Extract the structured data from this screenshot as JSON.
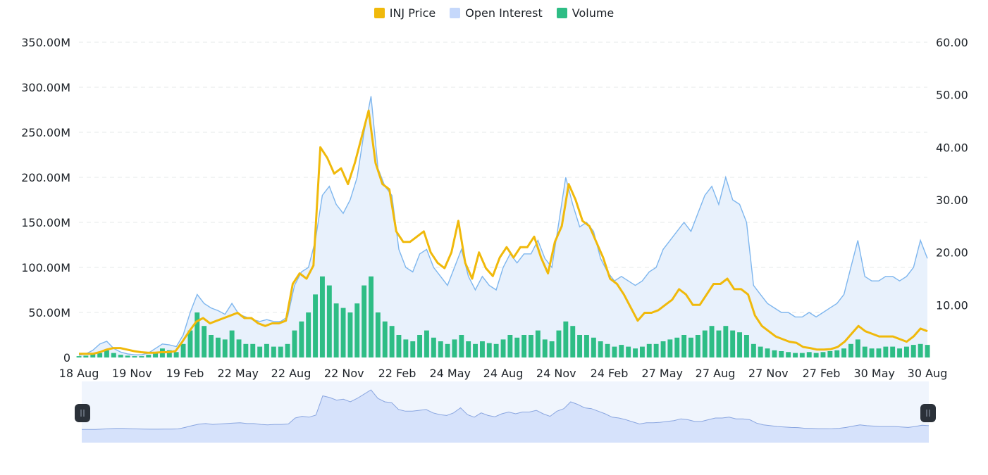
{
  "legend": {
    "items": [
      {
        "label": "INJ Price",
        "color": "#f0b90b"
      },
      {
        "label": "Open Interest",
        "color": "#c5d8fb"
      },
      {
        "label": "Volume",
        "color": "#2ebd85"
      }
    ]
  },
  "chart_data": {
    "type": "line",
    "grid": true,
    "legend_position": "top-center",
    "x_ticks": [
      "18 Aug",
      "19 Nov",
      "19 Feb",
      "22 May",
      "22 Aug",
      "22 Nov",
      "22 Feb",
      "24 May",
      "24 Aug",
      "24 Nov",
      "24 Feb",
      "27 May",
      "27 Aug",
      "27 Nov",
      "27 Feb",
      "30 May",
      "30 Aug"
    ],
    "y_left": {
      "ticks": [
        "0",
        "50.00M",
        "100.00M",
        "150.00M",
        "200.00M",
        "250.00M",
        "300.00M",
        "350.00M"
      ],
      "range": [
        0,
        350000000
      ]
    },
    "y_right": {
      "ticks": [
        "10.00",
        "20.00",
        "30.00",
        "40.00",
        "50.00",
        "60.00"
      ],
      "range": [
        0,
        60
      ]
    },
    "series": [
      {
        "name": "INJ Price",
        "axis": "right",
        "color": "#f0b90b",
        "values": [
          0.7,
          0.7,
          0.7,
          1.0,
          1.5,
          1.8,
          1.8,
          1.5,
          1.2,
          1.0,
          0.9,
          0.9,
          1.0,
          1.0,
          1.2,
          3.0,
          5.0,
          6.8,
          7.5,
          6.5,
          7.0,
          7.5,
          8.0,
          8.5,
          7.5,
          7.5,
          6.5,
          6.0,
          6.5,
          6.5,
          7.0,
          14.0,
          16.0,
          15.0,
          17.5,
          40.0,
          38.0,
          35.0,
          36.0,
          33.0,
          37.0,
          42.0,
          47.0,
          37.0,
          33.0,
          32.0,
          24.0,
          22.0,
          22.0,
          23.0,
          24.0,
          20.0,
          18.0,
          17.0,
          20.0,
          26.0,
          18.0,
          15.0,
          20.0,
          17.0,
          15.5,
          19.0,
          21.0,
          19.0,
          21.0,
          21.0,
          23.0,
          19.0,
          16.0,
          22.0,
          25.0,
          33.0,
          30.0,
          26.0,
          25.0,
          22.0,
          19.0,
          15.0,
          14.0,
          12.0,
          9.5,
          7.0,
          8.5,
          8.5,
          9.0,
          10.0,
          11.0,
          13.0,
          12.0,
          10.0,
          10.0,
          12.0,
          14.0,
          14.0,
          15.0,
          13.0,
          13.0,
          12.0,
          8.0,
          6.0,
          5.0,
          4.0,
          3.5,
          3.0,
          2.8,
          2.0,
          1.8,
          1.5,
          1.5,
          1.6,
          2.0,
          3.0,
          4.5,
          6.0,
          5.0,
          4.5,
          4.0,
          4.0,
          4.0,
          3.5,
          3.0,
          4.0,
          5.5,
          5.0
        ]
      },
      {
        "name": "Open Interest",
        "axis": "left",
        "color": "#7eb6ee",
        "fill": "#e8f1fc",
        "values": [
          2500000,
          4000000,
          8000000,
          15000000,
          18000000,
          10000000,
          6000000,
          4000000,
          3000000,
          3000000,
          5000000,
          10000000,
          15000000,
          14000000,
          12000000,
          25000000,
          50000000,
          70000000,
          60000000,
          55000000,
          52000000,
          48000000,
          60000000,
          48000000,
          45000000,
          42000000,
          40000000,
          42000000,
          40000000,
          40000000,
          45000000,
          80000000,
          95000000,
          100000000,
          130000000,
          180000000,
          190000000,
          170000000,
          160000000,
          175000000,
          200000000,
          250000000,
          290000000,
          210000000,
          190000000,
          180000000,
          120000000,
          100000000,
          95000000,
          115000000,
          120000000,
          100000000,
          90000000,
          80000000,
          100000000,
          120000000,
          90000000,
          75000000,
          90000000,
          80000000,
          75000000,
          100000000,
          115000000,
          105000000,
          115000000,
          115000000,
          130000000,
          110000000,
          100000000,
          150000000,
          200000000,
          170000000,
          145000000,
          150000000,
          140000000,
          110000000,
          95000000,
          85000000,
          90000000,
          85000000,
          80000000,
          85000000,
          95000000,
          100000000,
          120000000,
          130000000,
          140000000,
          150000000,
          140000000,
          160000000,
          180000000,
          190000000,
          170000000,
          200000000,
          175000000,
          170000000,
          150000000,
          80000000,
          70000000,
          60000000,
          55000000,
          50000000,
          50000000,
          45000000,
          45000000,
          50000000,
          45000000,
          50000000,
          55000000,
          60000000,
          70000000,
          100000000,
          130000000,
          90000000,
          85000000,
          85000000,
          90000000,
          90000000,
          85000000,
          90000000,
          100000000,
          130000000,
          110000000
        ]
      },
      {
        "name": "Volume",
        "axis": "left",
        "color": "#2ebd85",
        "values": [
          1500000,
          2000000,
          4000000,
          5000000,
          8000000,
          5000000,
          3000000,
          2000000,
          1500000,
          1500000,
          3000000,
          5000000,
          10000000,
          8000000,
          6000000,
          15000000,
          30000000,
          50000000,
          35000000,
          25000000,
          22000000,
          20000000,
          30000000,
          20000000,
          15000000,
          15000000,
          12000000,
          15000000,
          12000000,
          12000000,
          15000000,
          30000000,
          40000000,
          50000000,
          70000000,
          90000000,
          80000000,
          60000000,
          55000000,
          50000000,
          60000000,
          80000000,
          90000000,
          50000000,
          40000000,
          35000000,
          25000000,
          20000000,
          18000000,
          25000000,
          30000000,
          22000000,
          18000000,
          15000000,
          20000000,
          25000000,
          18000000,
          15000000,
          18000000,
          16000000,
          15000000,
          20000000,
          25000000,
          22000000,
          25000000,
          25000000,
          30000000,
          20000000,
          18000000,
          30000000,
          40000000,
          35000000,
          25000000,
          25000000,
          22000000,
          18000000,
          15000000,
          12000000,
          14000000,
          12000000,
          10000000,
          12000000,
          15000000,
          15000000,
          18000000,
          20000000,
          22000000,
          25000000,
          22000000,
          25000000,
          30000000,
          35000000,
          30000000,
          35000000,
          30000000,
          28000000,
          25000000,
          15000000,
          12000000,
          10000000,
          8000000,
          7000000,
          6000000,
          5000000,
          5000000,
          6000000,
          5000000,
          6000000,
          7000000,
          8000000,
          10000000,
          15000000,
          20000000,
          12000000,
          10000000,
          10000000,
          12000000,
          12000000,
          10000000,
          12000000,
          14000000,
          15000000,
          14000000
        ]
      }
    ]
  },
  "navigator": {
    "fill": "#d6e2fb",
    "values": [
      0.7,
      0.7,
      0.7,
      1.0,
      1.5,
      1.8,
      1.8,
      1.5,
      1.2,
      1.0,
      0.9,
      0.9,
      1.0,
      1.0,
      1.2,
      3.0,
      5.0,
      6.8,
      7.5,
      6.5,
      7.0,
      7.5,
      8.0,
      8.5,
      7.5,
      7.5,
      6.5,
      6.0,
      6.5,
      6.5,
      7.0,
      14.0,
      16.0,
      15.0,
      17.5,
      40.0,
      38.0,
      35.0,
      36.0,
      33.0,
      37.0,
      42.0,
      47.0,
      37.0,
      33.0,
      32.0,
      24.0,
      22.0,
      22.0,
      23.0,
      24.0,
      20.0,
      18.0,
      17.0,
      20.0,
      26.0,
      18.0,
      15.0,
      20.0,
      17.0,
      15.5,
      19.0,
      21.0,
      19.0,
      21.0,
      21.0,
      23.0,
      19.0,
      16.0,
      22.0,
      25.0,
      33.0,
      30.0,
      26.0,
      25.0,
      22.0,
      19.0,
      15.0,
      14.0,
      12.0,
      9.5,
      7.0,
      8.5,
      8.5,
      9.0,
      10.0,
      11.0,
      13.0,
      12.0,
      10.0,
      10.0,
      12.0,
      14.0,
      14.0,
      15.0,
      13.0,
      13.0,
      12.0,
      8.0,
      6.0,
      5.0,
      4.0,
      3.5,
      3.0,
      2.8,
      2.0,
      1.8,
      1.5,
      1.5,
      1.6,
      2.0,
      3.0,
      4.5,
      6.0,
      5.0,
      4.5,
      4.0,
      4.0,
      4.0,
      3.5,
      3.0,
      4.0,
      5.5,
      5.0
    ]
  }
}
